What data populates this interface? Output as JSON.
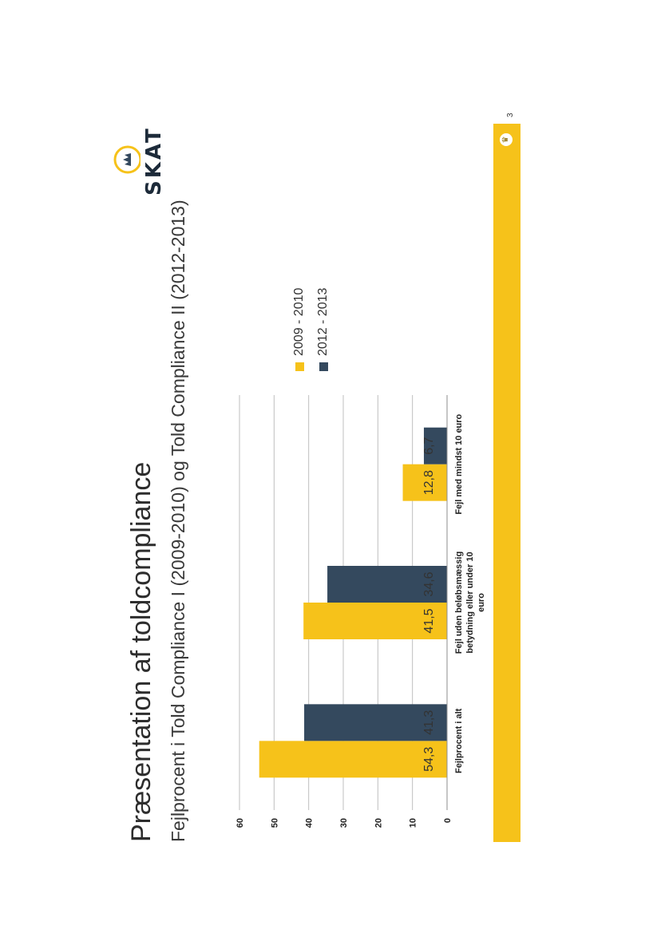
{
  "slide": {
    "title": "Præsentation af toldcompliance",
    "subtitle": "Fejlprocent i Told Compliance I (2009-2010) og Told Compliance II (2012-2013)",
    "brand": "SKAT",
    "page_number": "3"
  },
  "chart_data": {
    "type": "bar",
    "categories": [
      "Fejlprocent i alt",
      "Fejl uden beløbsmæssig betydning eller under 10 euro",
      "Fejl med mindst 10 euro"
    ],
    "series": [
      {
        "name": "2009 - 2010",
        "values": [
          54.3,
          41.5,
          12.8
        ],
        "labels": [
          "54,3",
          "41,5",
          "12,8"
        ],
        "color": "#f6c21a"
      },
      {
        "name": "2012 - 2013",
        "values": [
          41.3,
          34.6,
          6.7
        ],
        "labels": [
          "41,3",
          "34,6",
          "6,7"
        ],
        "color": "#34495e"
      }
    ],
    "yticks": [
      "0",
      "10",
      "20",
      "30",
      "40",
      "50",
      "60"
    ],
    "ylim": [
      0,
      60
    ],
    "grid": true,
    "legend_position": "right"
  },
  "colors": {
    "accent": "#f6c21a",
    "navy": "#34495e"
  }
}
